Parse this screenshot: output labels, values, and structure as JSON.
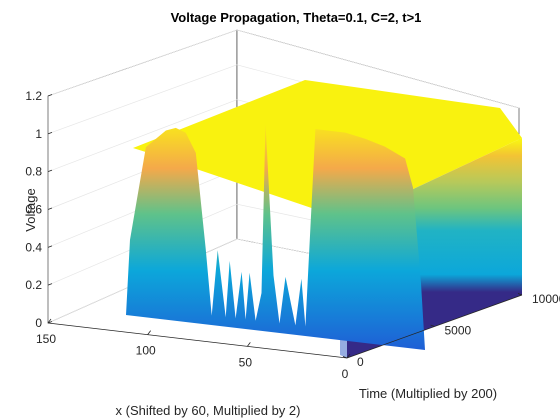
{
  "chart_data": {
    "type": "surface",
    "title": "Voltage Propagation, Theta=0.1, C=2, t>1",
    "zlabel": "Voltage",
    "xlabel": "Time (Multiplied by 200)",
    "ylabel": "x (Shifted by 60, Multiplied by 2)",
    "time_axis": {
      "range": [
        0,
        10000
      ],
      "ticks": [
        0,
        5000,
        10000
      ],
      "tick_labels": [
        "0",
        "5000",
        "10000"
      ]
    },
    "x_axis": {
      "range": [
        0,
        150
      ],
      "ticks": [
        150,
        100,
        50,
        0
      ],
      "tick_labels": [
        "150",
        "100",
        "50",
        "0"
      ]
    },
    "voltage_axis": {
      "range": [
        0,
        1.2
      ],
      "ticks": [
        0,
        0.2,
        0.4,
        0.6,
        0.8,
        1,
        1.2
      ],
      "tick_labels": [
        "0",
        "0.2",
        "0.4",
        "0.6",
        "0.8",
        "1",
        "1.2"
      ]
    },
    "grid": true,
    "colormap": "parula",
    "plateau_voltage": 1.15,
    "front_profile": {
      "description_x": [
        0,
        2,
        4,
        6,
        10,
        20,
        30,
        40,
        50,
        55,
        60,
        62,
        65,
        70,
        73,
        76,
        80,
        82,
        85,
        88,
        90,
        92,
        95,
        98,
        100,
        104,
        107,
        110,
        115,
        120,
        125,
        130,
        140,
        148,
        150
      ],
      "voltage": [
        0,
        0.35,
        0.6,
        0.85,
        1.0,
        1.05,
        1.08,
        1.1,
        1.1,
        1.1,
        0.05,
        0.3,
        0.05,
        0.3,
        0.05,
        0.3,
        1.1,
        0.2,
        0.05,
        0.3,
        0.05,
        0.3,
        0.05,
        0.35,
        0.05,
        0.4,
        0.05,
        0.4,
        0.9,
        1.0,
        1.02,
        1.0,
        0.9,
        0.4,
        0
      ]
    },
    "colors": {
      "low": "#352a87",
      "low_mid": "#0ca7da",
      "mid": "#63c081",
      "high": "#f6a83d",
      "top": "#f9fb0e",
      "axis": "#262626",
      "grid": "#e6e6e6"
    }
  }
}
